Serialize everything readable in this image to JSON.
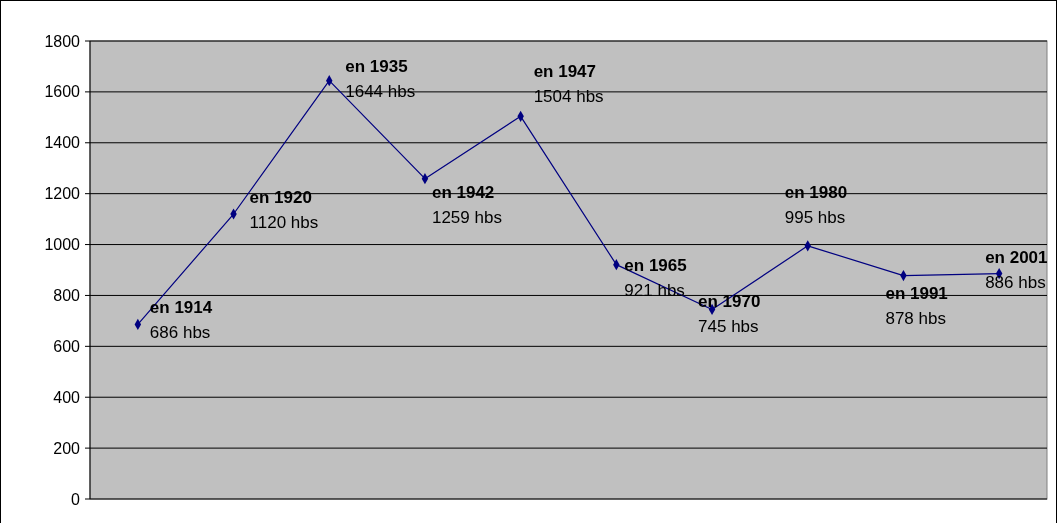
{
  "chart_data": {
    "type": "line",
    "categories": [
      null,
      null,
      null,
      null,
      null,
      null,
      null,
      null,
      null,
      null
    ],
    "series": [
      {
        "color": "#000080",
        "values": [
          686,
          1120,
          1644,
          1259,
          1504,
          921,
          745,
          995,
          878,
          886
        ],
        "value_labels": [
          "686 hbs",
          "1120 hbs",
          "1644 hbs",
          "1259 hbs",
          "1504 hbs",
          "921 hbs",
          "745 hbs",
          "995 hbs",
          "878 hbs",
          "886 hbs"
        ]
      }
    ],
    "annotations": [
      "en 1914",
      "en 1920",
      "en 1935",
      "en 1942",
      "en 1947",
      "en 1965",
      "en 1970",
      "en 1980",
      "en 1991",
      "en 2001"
    ],
    "ylim": [
      0,
      1800
    ],
    "yticks": [
      0,
      200,
      400,
      600,
      800,
      1000,
      1200,
      1400,
      1600,
      1800
    ],
    "grid": "y",
    "marker": "diamond",
    "line_style": "solid"
  }
}
